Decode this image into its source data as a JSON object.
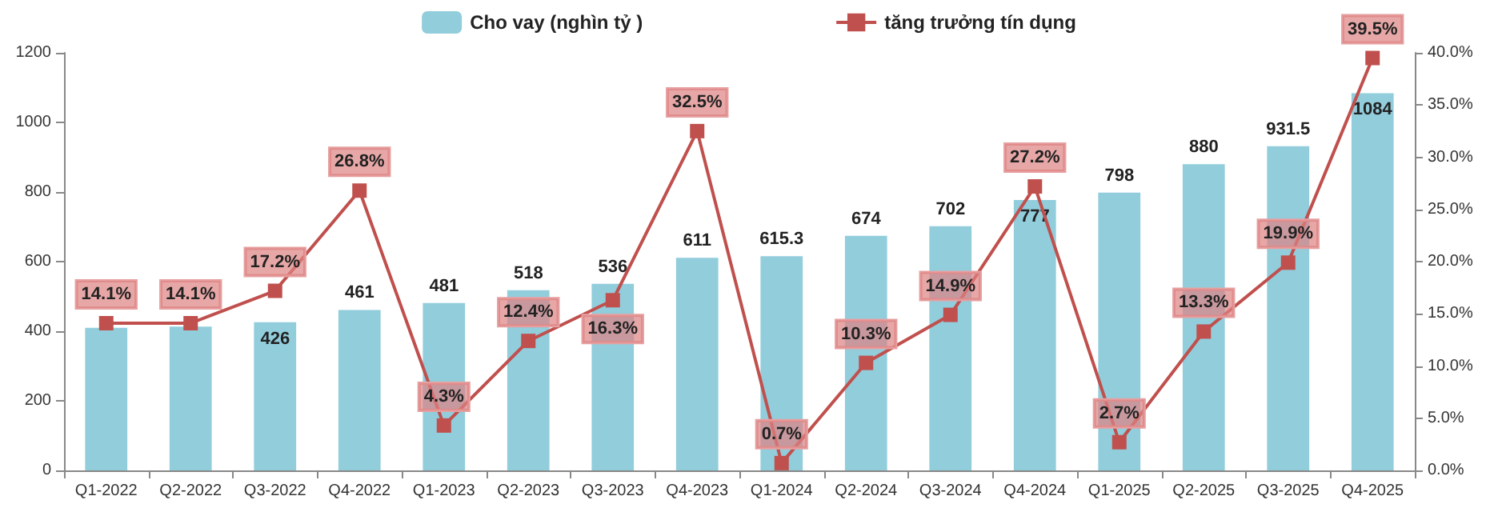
{
  "chart_data": {
    "type": "bar",
    "categories": [
      "Q1-2022",
      "Q2-2022",
      "Q3-2022",
      "Q4-2022",
      "Q1-2023",
      "Q2-2023",
      "Q3-2023",
      "Q4-2023",
      "Q1-2024",
      "Q2-2024",
      "Q3-2024",
      "Q4-2024",
      "Q1-2025",
      "Q2-2025",
      "Q3-2025",
      "Q4-2025"
    ],
    "series": [
      {
        "name": "Cho vay (nghìn tỷ )",
        "color": "#92cddc",
        "values": [
          410,
          413,
          426,
          461,
          481,
          518,
          536,
          611,
          615.3,
          674,
          702,
          777,
          798,
          880,
          931.5,
          1084
        ],
        "value_labels": [
          null,
          null,
          "426",
          "461",
          "481",
          "518",
          "536",
          "611",
          "615.3",
          "674",
          "702",
          "777",
          "798",
          "880",
          "931.5",
          "1084"
        ]
      },
      {
        "name": "tăng trưởng tín dụng",
        "type": "line",
        "axis": "y2",
        "color": "#c0504d",
        "marker": "square",
        "values": [
          14.1,
          14.1,
          17.2,
          26.8,
          4.3,
          12.4,
          16.3,
          32.5,
          0.7,
          10.3,
          14.9,
          27.2,
          2.7,
          13.3,
          19.9,
          39.5
        ],
        "value_labels": [
          "14.1%",
          "14.1%",
          "17.2%",
          "26.8%",
          "4.3%",
          "12.4%",
          "16.3%",
          "32.5%",
          "0.7%",
          "10.3%",
          "14.9%",
          "27.2%",
          "2.7%",
          "13.3%",
          "19.9%",
          "39.5%"
        ]
      }
    ],
    "ylim": [
      0,
      1200
    ],
    "yticks": [
      0,
      200,
      400,
      600,
      800,
      1000,
      1200
    ],
    "y2lim": [
      0,
      40
    ],
    "y2ticks": [
      {
        "value": 0,
        "label": "0.0%"
      },
      {
        "value": 5,
        "label": "5.0%"
      },
      {
        "value": 10,
        "label": "10.0%"
      },
      {
        "value": 15,
        "label": "15.0%"
      },
      {
        "value": 20,
        "label": "20.0%"
      },
      {
        "value": 25,
        "label": "25.0%"
      },
      {
        "value": 30,
        "label": "30.0%"
      },
      {
        "value": 35,
        "label": "35.0%"
      },
      {
        "value": 40,
        "label": "40.0%"
      }
    ],
    "grid": false,
    "legend": "top"
  }
}
